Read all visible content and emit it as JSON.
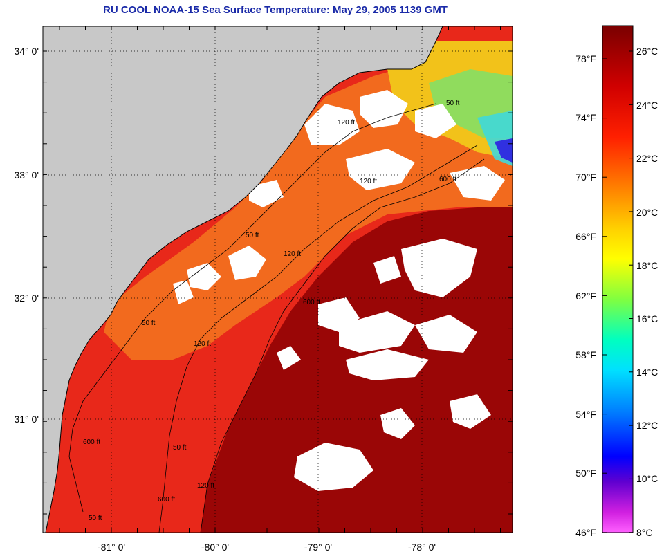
{
  "title": "RU COOL  NOAA-15  Sea Surface Temperature:  May 29, 2005 1139 GMT",
  "map": {
    "lat_labels": [
      "34° 0'",
      "33° 0'",
      "32° 0'",
      "31° 0'"
    ],
    "lon_labels": [
      "-81° 0'",
      "-80° 0'",
      "-79° 0'",
      "-78° 0'"
    ],
    "contour_labels": [
      "50 ft",
      "120 ft",
      "600 ft",
      "50 ft",
      "120 ft",
      "600 ft",
      "50 ft",
      "120 ft",
      "600 ft",
      "50 ft",
      "120 ft",
      "600 ft",
      "50 ft",
      "120 ft"
    ],
    "colors": {
      "land": "#c8c8c8",
      "cloud": "#ffffff",
      "warm_water": "#e8281a",
      "gulf_stream": "#9a0606",
      "shelf_water": "#f26a1e"
    }
  },
  "colorbar": {
    "fahrenheit_labels": [
      "78°F",
      "74°F",
      "70°F",
      "66°F",
      "62°F",
      "58°F",
      "54°F",
      "50°F",
      "46°F"
    ],
    "celsius_labels": [
      "26°C",
      "24°C",
      "22°C",
      "20°C",
      "18°C",
      "16°C",
      "14°C",
      "12°C",
      "10°C",
      "8°C"
    ],
    "stops": [
      "#8b0000",
      "#ff0000",
      "#ff7f00",
      "#ffff00",
      "#7fff00",
      "#00ffff",
      "#0080ff",
      "#0000ff",
      "#8000c0",
      "#ff40ff"
    ]
  }
}
